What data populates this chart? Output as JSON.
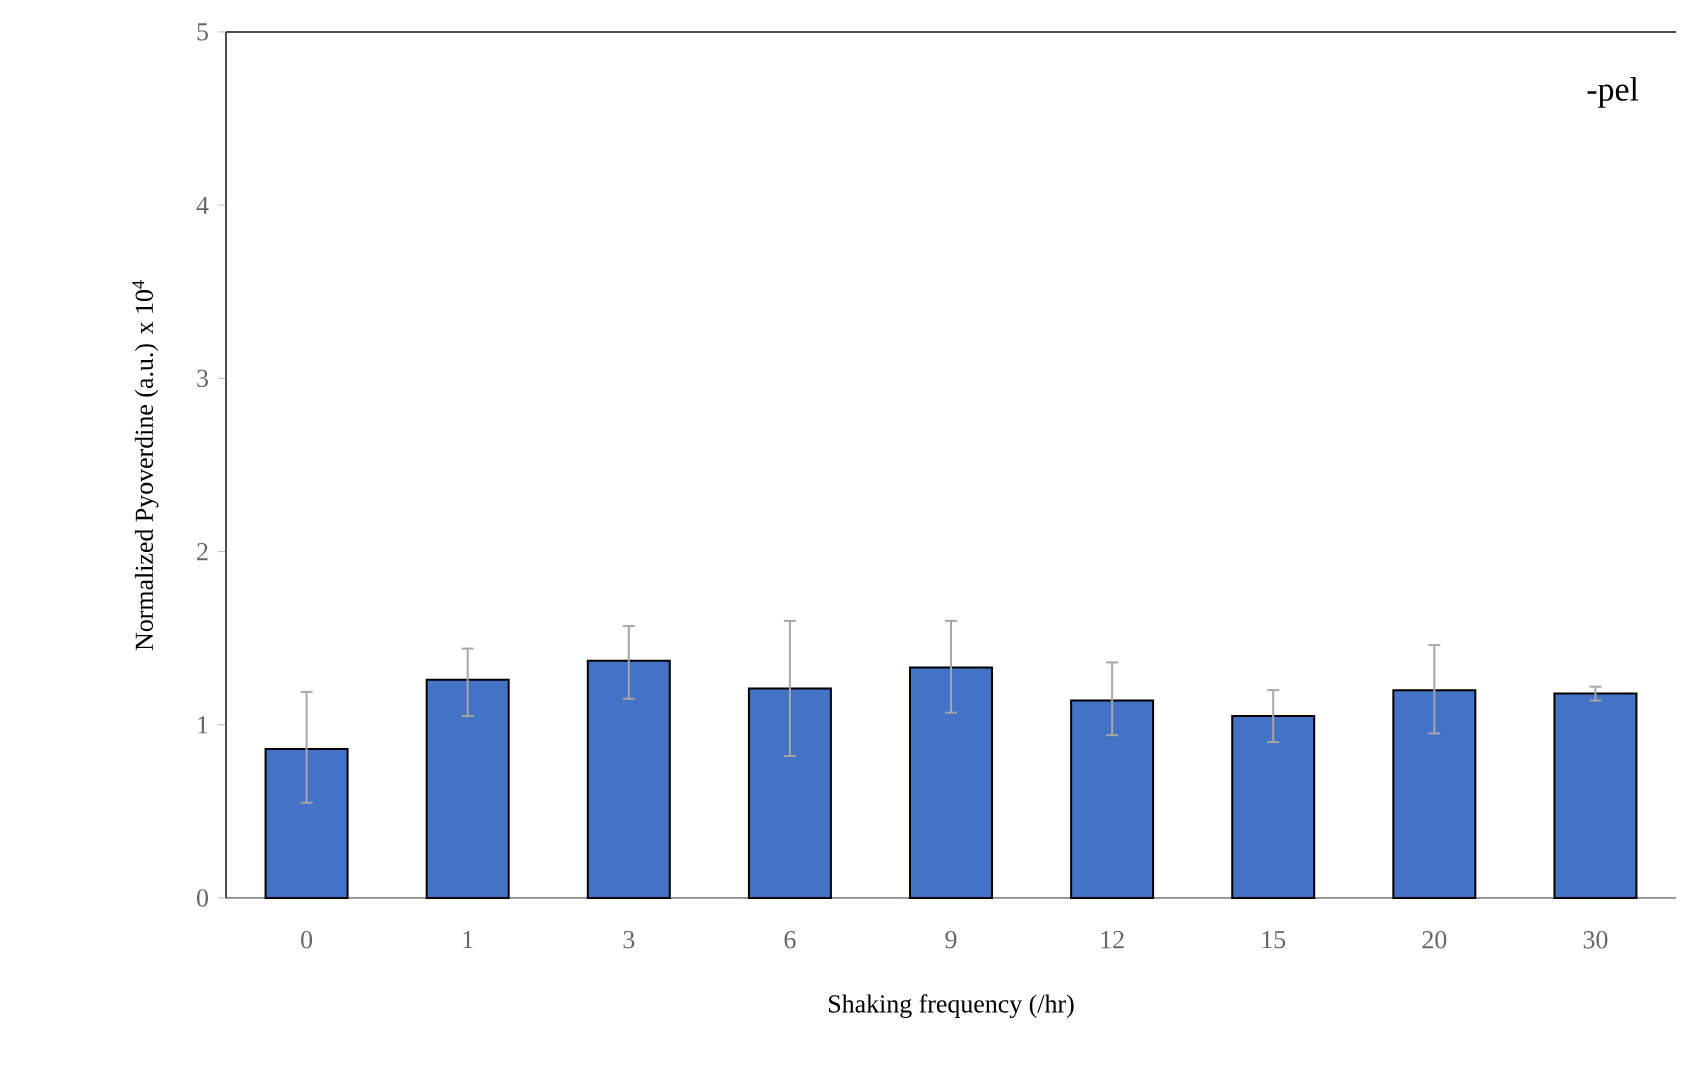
{
  "chart_data": {
    "type": "bar",
    "xlabel": "Shaking frequency (/hr)",
    "ylabel": "Normalized Pyoverdine (a.u.) x 10$^{4}$",
    "categories": [
      "0",
      "1",
      "3",
      "6",
      "9",
      "12",
      "15",
      "20",
      "30"
    ],
    "values": [
      0.86,
      1.26,
      1.37,
      1.21,
      1.33,
      1.14,
      1.05,
      1.2,
      1.18
    ],
    "errors": [
      [
        0.55,
        1.19
      ],
      [
        1.05,
        1.44
      ],
      [
        1.15,
        1.57
      ],
      [
        0.82,
        1.6
      ],
      [
        1.07,
        1.6
      ],
      [
        0.94,
        1.36
      ],
      [
        0.9,
        1.2
      ],
      [
        0.95,
        1.46
      ],
      [
        1.14,
        1.22
      ]
    ],
    "color": "#4472c4",
    "ylim": [
      0,
      5
    ],
    "yticks": [
      0,
      1,
      2,
      3,
      4,
      5
    ],
    "grid": false,
    "annotations": [
      "-pel"
    ]
  }
}
